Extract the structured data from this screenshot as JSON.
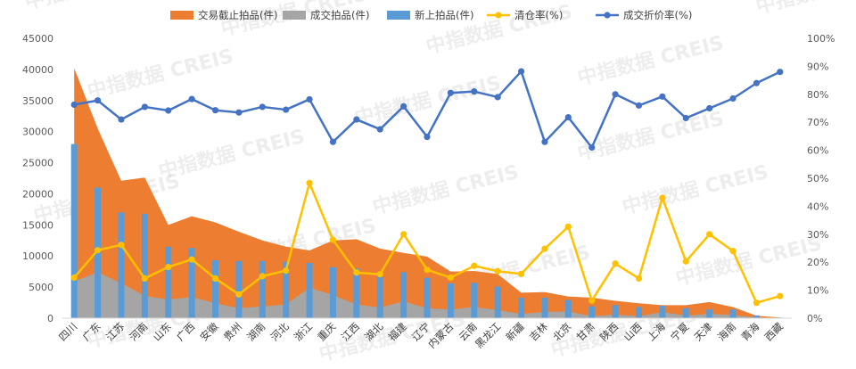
{
  "chart_data": {
    "type": "combo",
    "categories": [
      "四川",
      "广东",
      "江苏",
      "河南",
      "山东",
      "广西",
      "安徽",
      "贵州",
      "湖南",
      "河北",
      "浙江",
      "重庆",
      "江西",
      "湖北",
      "福建",
      "辽宁",
      "内蒙古",
      "云南",
      "黑龙江",
      "新疆",
      "吉林",
      "北京",
      "甘肃",
      "陕西",
      "山西",
      "上海",
      "宁夏",
      "天津",
      "海南",
      "青海",
      "西藏"
    ],
    "legend": [
      "交易截止拍品(件)",
      "成交拍品(件)",
      "新上拍品(件)",
      "清仓率(%)",
      "成交折价率(%)"
    ],
    "series": [
      {
        "name": "交易截止拍品(件)",
        "kind": "area",
        "axis": "left",
        "color": "#ED7D31",
        "values": [
          40200,
          30500,
          22100,
          22600,
          15000,
          16400,
          15400,
          13900,
          12500,
          11500,
          10900,
          12500,
          12700,
          11200,
          10500,
          9900,
          7500,
          7600,
          7100,
          4100,
          4200,
          3500,
          3300,
          2800,
          2400,
          2100,
          2100,
          2600,
          1800,
          400,
          100
        ]
      },
      {
        "name": "成交拍品(件)",
        "kind": "area",
        "axis": "left",
        "color": "#A5A5A5",
        "values": [
          5900,
          7400,
          5600,
          3600,
          3000,
          3400,
          2400,
          1600,
          1900,
          2200,
          4900,
          3700,
          2200,
          1700,
          2700,
          1600,
          1400,
          1800,
          1300,
          700,
          1000,
          1100,
          300,
          600,
          300,
          1000,
          400,
          700,
          500,
          100,
          50
        ]
      },
      {
        "name": "新上拍品(件)",
        "kind": "bar",
        "axis": "left",
        "color": "#5B9BD5",
        "values": [
          28000,
          21000,
          17000,
          16800,
          11500,
          11300,
          9300,
          9200,
          9200,
          9100,
          8900,
          8200,
          8000,
          7400,
          7400,
          6500,
          5600,
          5700,
          5100,
          3300,
          3300,
          2900,
          1900,
          2100,
          1800,
          2000,
          1600,
          1400,
          1400,
          450,
          100
        ]
      },
      {
        "name": "清仓率(%)",
        "kind": "line",
        "axis": "right",
        "color": "#FFC000",
        "values": [
          14.5,
          24.3,
          26.2,
          14.2,
          18.3,
          21.0,
          14.2,
          8.5,
          15.0,
          17.0,
          48.3,
          28.0,
          16.3,
          15.7,
          30.0,
          17.3,
          14.5,
          18.7,
          16.8,
          15.8,
          24.8,
          32.7,
          6.3,
          19.5,
          14.2,
          43.0,
          20.3,
          30.0,
          24.0,
          5.5,
          7.9
        ]
      },
      {
        "name": "成交折价率(%)",
        "kind": "line",
        "axis": "right",
        "color": "#4472C4",
        "values": [
          76.3,
          77.8,
          71.0,
          75.5,
          74.2,
          78.3,
          74.3,
          73.5,
          75.5,
          74.5,
          78.2,
          63.0,
          71.0,
          67.5,
          75.7,
          64.8,
          80.5,
          81.0,
          79.0,
          88.2,
          63.0,
          71.8,
          61.0,
          80.0,
          76.0,
          79.2,
          71.5,
          75.0,
          78.5,
          84.0,
          88.0
        ]
      }
    ],
    "y_left": {
      "min": 0,
      "max": 45000,
      "ticks": [
        "0",
        "5000",
        "10000",
        "15000",
        "20000",
        "25000",
        "30000",
        "35000",
        "40000",
        "45000"
      ]
    },
    "y_right": {
      "min": 0,
      "max": 100,
      "ticks": [
        "0%",
        "10%",
        "20%",
        "30%",
        "40%",
        "50%",
        "60%",
        "70%",
        "80%",
        "90%",
        "100%"
      ]
    },
    "legend_position": "top",
    "grid": false
  },
  "watermark": "中指数据 CREIS"
}
